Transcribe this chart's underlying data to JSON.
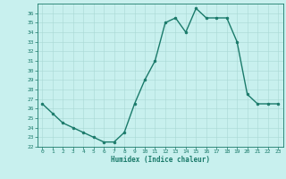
{
  "x": [
    0,
    1,
    2,
    3,
    4,
    5,
    6,
    7,
    8,
    9,
    10,
    11,
    12,
    13,
    14,
    15,
    16,
    17,
    18,
    19,
    20,
    21,
    22,
    23
  ],
  "y": [
    26.5,
    25.5,
    24.5,
    24.0,
    23.5,
    23.0,
    22.5,
    22.5,
    23.5,
    26.5,
    29.0,
    31.0,
    35.0,
    35.5,
    34.0,
    36.5,
    35.5,
    35.5,
    35.5,
    33.0,
    27.5,
    26.5,
    26.5,
    26.5
  ],
  "ylim": [
    22,
    37
  ],
  "xlim": [
    -0.5,
    23.5
  ],
  "yticks": [
    22,
    23,
    24,
    25,
    26,
    27,
    28,
    29,
    30,
    31,
    32,
    33,
    34,
    35,
    36
  ],
  "xticks": [
    0,
    1,
    2,
    3,
    4,
    5,
    6,
    7,
    8,
    9,
    10,
    11,
    12,
    13,
    14,
    15,
    16,
    17,
    18,
    19,
    20,
    21,
    22,
    23
  ],
  "xlabel": "Humidex (Indice chaleur)",
  "line_color": "#1a7a6a",
  "marker_color": "#1a7a6a",
  "bg_color": "#c8f0ee",
  "grid_color": "#a8d8d4",
  "tick_color": "#1a7a6a",
  "spine_color": "#1a7a6a"
}
